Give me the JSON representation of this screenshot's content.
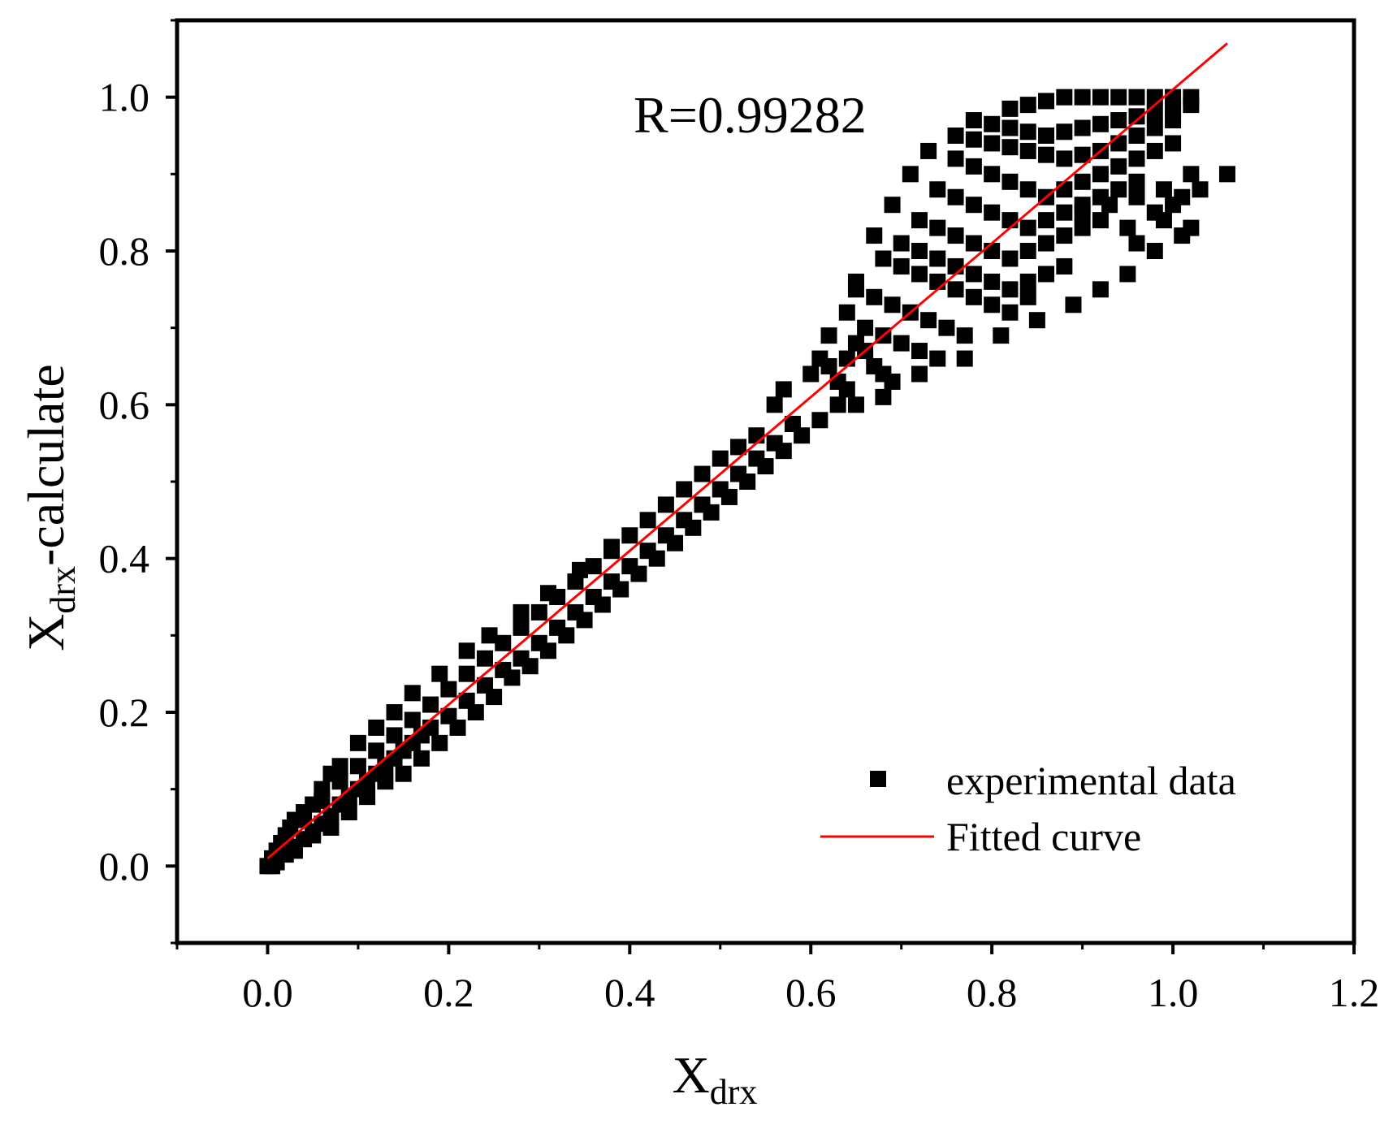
{
  "chart_data": {
    "type": "scatter",
    "xlabel": {
      "main": "X",
      "sub": "drx",
      "suffix": ""
    },
    "ylabel": {
      "main": "X",
      "sub": "drx",
      "suffix": "-calculate"
    },
    "xlim": [
      -0.1,
      1.2
    ],
    "ylim": [
      -0.1,
      1.1
    ],
    "x_ticks": [
      "0.0",
      "0.2",
      "0.4",
      "0.6",
      "0.8",
      "1.0",
      "1.2"
    ],
    "y_ticks": [
      "0.0",
      "0.2",
      "0.4",
      "0.6",
      "0.8",
      "1.0"
    ],
    "x_tick_values": [
      0.0,
      0.2,
      0.4,
      0.6,
      0.8,
      1.0,
      1.2
    ],
    "y_tick_values": [
      0.0,
      0.2,
      0.4,
      0.6,
      0.8,
      1.0
    ],
    "annotation": "R=0.99282",
    "grid": false,
    "legend": {
      "position": "bottom-right",
      "entries": [
        {
          "label": "experimental data",
          "marker": "square",
          "color": "#000000"
        },
        {
          "label": "Fitted curve",
          "marker": "line",
          "color": "#ff0000"
        }
      ]
    },
    "series": [
      {
        "name": "experimental data",
        "color": "#000000",
        "points": [
          [
            0.0,
            0.0
          ],
          [
            0.005,
            0.01
          ],
          [
            0.01,
            0.02
          ],
          [
            0.015,
            0.03
          ],
          [
            0.02,
            0.04
          ],
          [
            0.025,
            0.05
          ],
          [
            0.03,
            0.06
          ],
          [
            0.04,
            0.07
          ],
          [
            0.05,
            0.08
          ],
          [
            0.06,
            0.1
          ],
          [
            0.07,
            0.12
          ],
          [
            0.08,
            0.13
          ],
          [
            0.1,
            0.16
          ],
          [
            0.12,
            0.18
          ],
          [
            0.14,
            0.2
          ],
          [
            0.16,
            0.225
          ],
          [
            0.19,
            0.25
          ],
          [
            0.22,
            0.28
          ],
          [
            0.245,
            0.3
          ],
          [
            0.28,
            0.33
          ],
          [
            0.31,
            0.355
          ],
          [
            0.345,
            0.385
          ],
          [
            0.38,
            0.415
          ],
          [
            0.005,
            0.0
          ],
          [
            0.01,
            0.005
          ],
          [
            0.02,
            0.015
          ],
          [
            0.03,
            0.025
          ],
          [
            0.04,
            0.035
          ],
          [
            0.05,
            0.045
          ],
          [
            0.06,
            0.055
          ],
          [
            0.07,
            0.065
          ],
          [
            0.08,
            0.08
          ],
          [
            0.09,
            0.09
          ],
          [
            0.1,
            0.1
          ],
          [
            0.11,
            0.11
          ],
          [
            0.12,
            0.12
          ],
          [
            0.13,
            0.13
          ],
          [
            0.14,
            0.14
          ],
          [
            0.15,
            0.15
          ],
          [
            0.16,
            0.16
          ],
          [
            0.17,
            0.17
          ],
          [
            0.18,
            0.18
          ],
          [
            0.2,
            0.195
          ],
          [
            0.22,
            0.215
          ],
          [
            0.24,
            0.235
          ],
          [
            0.26,
            0.255
          ],
          [
            0.28,
            0.27
          ],
          [
            0.3,
            0.29
          ],
          [
            0.32,
            0.31
          ],
          [
            0.34,
            0.33
          ],
          [
            0.36,
            0.35
          ],
          [
            0.38,
            0.37
          ],
          [
            0.4,
            0.39
          ],
          [
            0.42,
            0.41
          ],
          [
            0.44,
            0.43
          ],
          [
            0.46,
            0.45
          ],
          [
            0.48,
            0.47
          ],
          [
            0.5,
            0.49
          ],
          [
            0.52,
            0.51
          ],
          [
            0.54,
            0.53
          ],
          [
            0.56,
            0.55
          ],
          [
            0.58,
            0.575
          ],
          [
            0.02,
            0.03
          ],
          [
            0.04,
            0.06
          ],
          [
            0.06,
            0.085
          ],
          [
            0.08,
            0.11
          ],
          [
            0.1,
            0.13
          ],
          [
            0.12,
            0.15
          ],
          [
            0.14,
            0.17
          ],
          [
            0.16,
            0.19
          ],
          [
            0.18,
            0.21
          ],
          [
            0.2,
            0.23
          ],
          [
            0.22,
            0.25
          ],
          [
            0.24,
            0.27
          ],
          [
            0.26,
            0.29
          ],
          [
            0.28,
            0.31
          ],
          [
            0.3,
            0.33
          ],
          [
            0.32,
            0.35
          ],
          [
            0.34,
            0.37
          ],
          [
            0.36,
            0.39
          ],
          [
            0.38,
            0.41
          ],
          [
            0.4,
            0.43
          ],
          [
            0.42,
            0.45
          ],
          [
            0.44,
            0.47
          ],
          [
            0.46,
            0.49
          ],
          [
            0.48,
            0.51
          ],
          [
            0.5,
            0.53
          ],
          [
            0.52,
            0.545
          ],
          [
            0.54,
            0.56
          ],
          [
            0.56,
            0.6
          ],
          [
            0.57,
            0.62
          ],
          [
            0.6,
            0.64
          ],
          [
            0.61,
            0.66
          ],
          [
            0.62,
            0.69
          ],
          [
            0.03,
            0.02
          ],
          [
            0.05,
            0.04
          ],
          [
            0.07,
            0.05
          ],
          [
            0.09,
            0.07
          ],
          [
            0.11,
            0.09
          ],
          [
            0.13,
            0.11
          ],
          [
            0.15,
            0.12
          ],
          [
            0.17,
            0.14
          ],
          [
            0.19,
            0.16
          ],
          [
            0.21,
            0.18
          ],
          [
            0.23,
            0.2
          ],
          [
            0.25,
            0.22
          ],
          [
            0.27,
            0.245
          ],
          [
            0.29,
            0.26
          ],
          [
            0.31,
            0.28
          ],
          [
            0.33,
            0.3
          ],
          [
            0.35,
            0.32
          ],
          [
            0.37,
            0.34
          ],
          [
            0.39,
            0.36
          ],
          [
            0.41,
            0.38
          ],
          [
            0.43,
            0.4
          ],
          [
            0.45,
            0.42
          ],
          [
            0.47,
            0.44
          ],
          [
            0.49,
            0.46
          ],
          [
            0.51,
            0.48
          ],
          [
            0.53,
            0.5
          ],
          [
            0.55,
            0.52
          ],
          [
            0.57,
            0.54
          ],
          [
            0.59,
            0.56
          ],
          [
            0.61,
            0.58
          ],
          [
            0.63,
            0.6
          ],
          [
            0.62,
            0.65
          ],
          [
            0.63,
            0.63
          ],
          [
            0.64,
            0.62
          ],
          [
            0.65,
            0.6
          ],
          [
            0.64,
            0.66
          ],
          [
            0.65,
            0.68
          ],
          [
            0.66,
            0.67
          ],
          [
            0.67,
            0.65
          ],
          [
            0.68,
            0.64
          ],
          [
            0.69,
            0.63
          ],
          [
            0.64,
            0.72
          ],
          [
            0.66,
            0.7
          ],
          [
            0.68,
            0.69
          ],
          [
            0.7,
            0.68
          ],
          [
            0.72,
            0.67
          ],
          [
            0.74,
            0.66
          ],
          [
            0.65,
            0.75
          ],
          [
            0.67,
            0.74
          ],
          [
            0.69,
            0.73
          ],
          [
            0.71,
            0.72
          ],
          [
            0.73,
            0.71
          ],
          [
            0.75,
            0.7
          ],
          [
            0.77,
            0.69
          ],
          [
            0.65,
            0.76
          ],
          [
            0.68,
            0.79
          ],
          [
            0.7,
            0.78
          ],
          [
            0.72,
            0.77
          ],
          [
            0.74,
            0.76
          ],
          [
            0.76,
            0.75
          ],
          [
            0.78,
            0.74
          ],
          [
            0.8,
            0.73
          ],
          [
            0.82,
            0.72
          ],
          [
            0.84,
            0.74
          ],
          [
            0.67,
            0.82
          ],
          [
            0.7,
            0.81
          ],
          [
            0.72,
            0.8
          ],
          [
            0.74,
            0.79
          ],
          [
            0.76,
            0.78
          ],
          [
            0.78,
            0.77
          ],
          [
            0.8,
            0.76
          ],
          [
            0.82,
            0.75
          ],
          [
            0.84,
            0.76
          ],
          [
            0.86,
            0.77
          ],
          [
            0.88,
            0.78
          ],
          [
            0.69,
            0.86
          ],
          [
            0.72,
            0.84
          ],
          [
            0.74,
            0.83
          ],
          [
            0.76,
            0.82
          ],
          [
            0.78,
            0.81
          ],
          [
            0.8,
            0.8
          ],
          [
            0.82,
            0.79
          ],
          [
            0.84,
            0.8
          ],
          [
            0.86,
            0.81
          ],
          [
            0.88,
            0.82
          ],
          [
            0.9,
            0.83
          ],
          [
            0.92,
            0.84
          ],
          [
            0.71,
            0.9
          ],
          [
            0.74,
            0.88
          ],
          [
            0.76,
            0.87
          ],
          [
            0.78,
            0.86
          ],
          [
            0.8,
            0.85
          ],
          [
            0.82,
            0.84
          ],
          [
            0.84,
            0.83
          ],
          [
            0.86,
            0.84
          ],
          [
            0.88,
            0.85
          ],
          [
            0.9,
            0.86
          ],
          [
            0.92,
            0.87
          ],
          [
            0.94,
            0.88
          ],
          [
            0.96,
            0.89
          ],
          [
            0.73,
            0.93
          ],
          [
            0.76,
            0.92
          ],
          [
            0.78,
            0.91
          ],
          [
            0.8,
            0.9
          ],
          [
            0.82,
            0.89
          ],
          [
            0.84,
            0.88
          ],
          [
            0.86,
            0.87
          ],
          [
            0.88,
            0.88
          ],
          [
            0.9,
            0.89
          ],
          [
            0.92,
            0.9
          ],
          [
            0.94,
            0.91
          ],
          [
            0.96,
            0.92
          ],
          [
            0.98,
            0.93
          ],
          [
            1.0,
            0.94
          ],
          [
            0.76,
            0.95
          ],
          [
            0.78,
            0.945
          ],
          [
            0.8,
            0.94
          ],
          [
            0.82,
            0.935
          ],
          [
            0.84,
            0.93
          ],
          [
            0.86,
            0.925
          ],
          [
            0.88,
            0.92
          ],
          [
            0.9,
            0.925
          ],
          [
            0.92,
            0.93
          ],
          [
            0.94,
            0.94
          ],
          [
            0.96,
            0.95
          ],
          [
            0.98,
            0.96
          ],
          [
            1.0,
            0.97
          ],
          [
            0.78,
            0.97
          ],
          [
            0.8,
            0.965
          ],
          [
            0.82,
            0.96
          ],
          [
            0.84,
            0.955
          ],
          [
            0.86,
            0.95
          ],
          [
            0.88,
            0.955
          ],
          [
            0.9,
            0.96
          ],
          [
            0.92,
            0.965
          ],
          [
            0.94,
            0.97
          ],
          [
            0.96,
            0.975
          ],
          [
            0.98,
            0.98
          ],
          [
            1.0,
            0.985
          ],
          [
            1.02,
            0.99
          ],
          [
            0.82,
            0.985
          ],
          [
            0.84,
            0.99
          ],
          [
            0.86,
            0.995
          ],
          [
            0.88,
            1.0
          ],
          [
            0.9,
            1.0
          ],
          [
            0.92,
            1.0
          ],
          [
            0.94,
            1.0
          ],
          [
            0.96,
            1.0
          ],
          [
            0.98,
            1.0
          ],
          [
            1.0,
            1.0
          ],
          [
            1.02,
            1.0
          ],
          [
            0.9,
            0.85
          ],
          [
            0.93,
            0.86
          ],
          [
            0.96,
            0.87
          ],
          [
            0.99,
            0.88
          ],
          [
            1.02,
            0.9
          ],
          [
            0.95,
            0.83
          ],
          [
            0.98,
            0.85
          ],
          [
            1.01,
            0.87
          ],
          [
            0.68,
            0.61
          ],
          [
            0.72,
            0.64
          ],
          [
            0.77,
            0.66
          ],
          [
            0.81,
            0.69
          ],
          [
            0.85,
            0.71
          ],
          [
            0.89,
            0.73
          ],
          [
            0.92,
            0.75
          ],
          [
            0.95,
            0.77
          ],
          [
            0.98,
            0.8
          ],
          [
            1.01,
            0.82
          ],
          [
            1.02,
            0.83
          ],
          [
            0.96,
            0.81
          ],
          [
            0.99,
            0.84
          ],
          [
            1.03,
            0.88
          ],
          [
            1.06,
            0.9
          ],
          [
            1.0,
            0.86
          ]
        ]
      },
      {
        "name": "Fitted curve",
        "color": "#ff0000",
        "line": [
          [
            0.0,
            0.01
          ],
          [
            1.06,
            1.07
          ]
        ]
      }
    ]
  }
}
